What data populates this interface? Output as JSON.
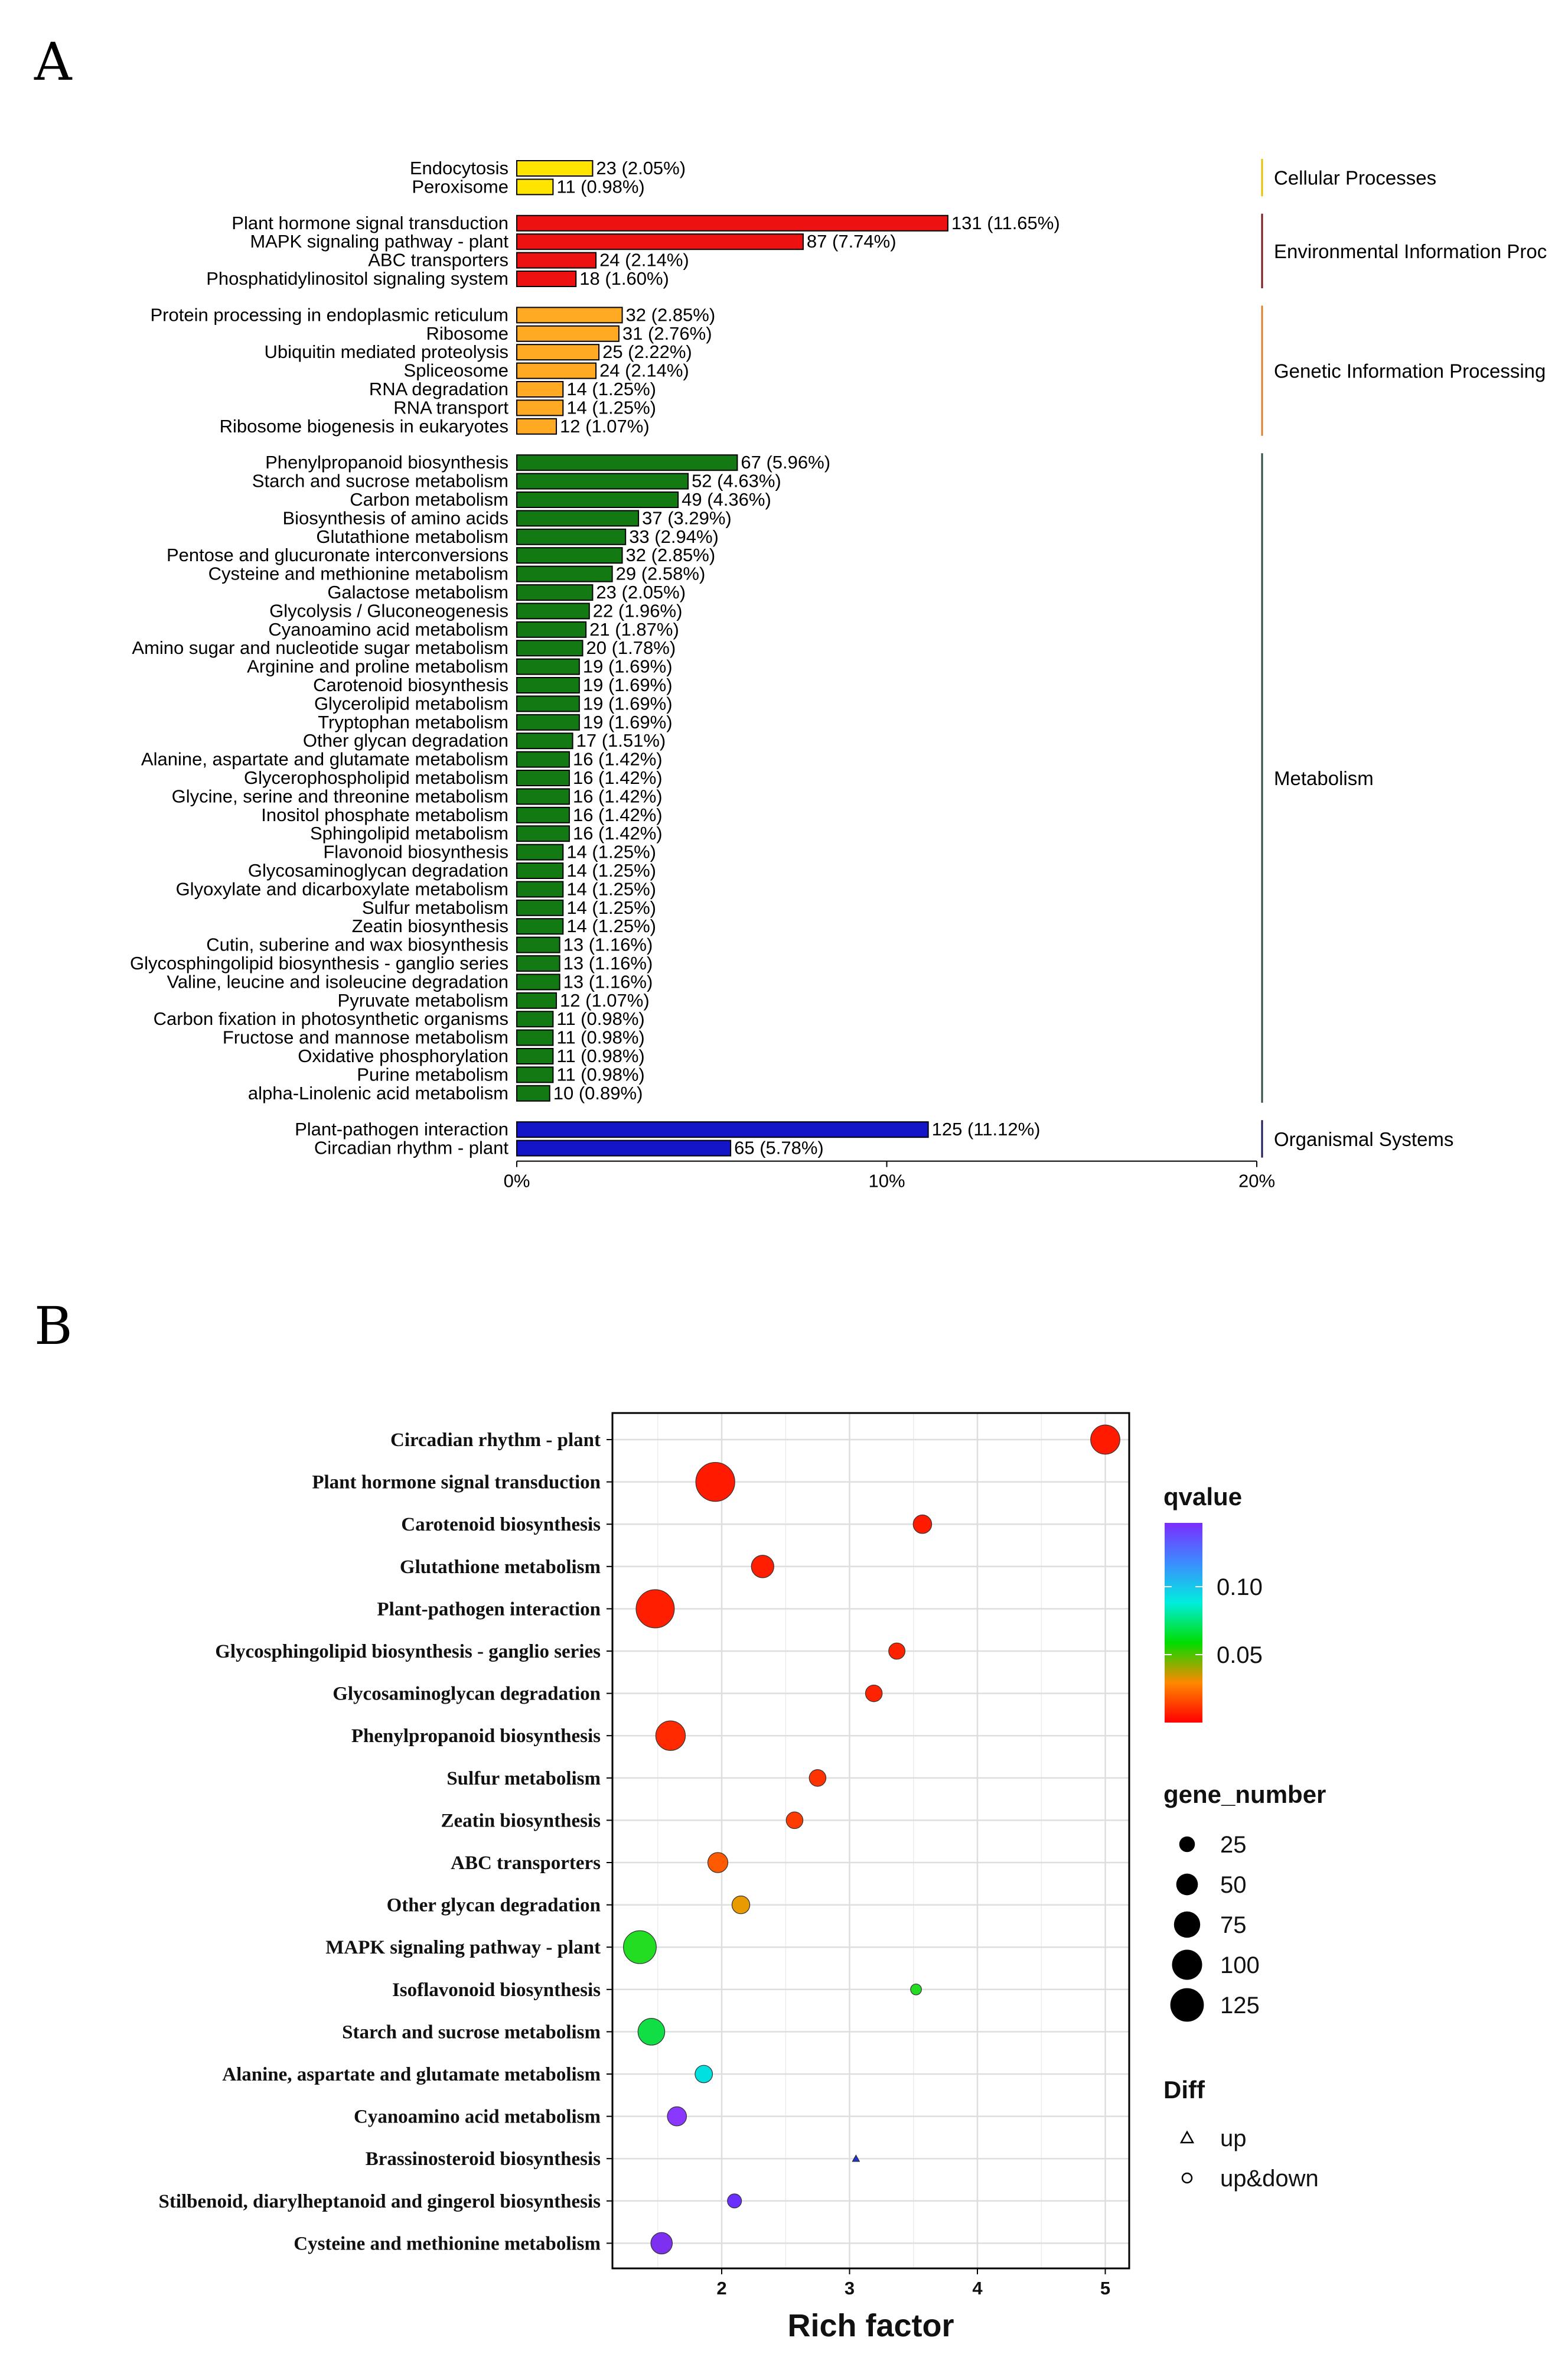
{
  "panel_labels": {
    "a": "A",
    "b": "B"
  },
  "chart_data": [
    {
      "type": "bar",
      "orientation": "horizontal",
      "panel": "A",
      "xlim": [
        0,
        20
      ],
      "x_ticks": [
        "0%",
        "10%",
        "20%"
      ],
      "grid": false,
      "groups": [
        {
          "name": "Cellular Processes",
          "color": "#ffe400",
          "bracket_color": "#e6c200",
          "items": [
            {
              "label": "Endocytosis",
              "count": 23,
              "percent": 2.05,
              "text": "23 (2.05%)"
            },
            {
              "label": "Peroxisome",
              "count": 11,
              "percent": 0.98,
              "text": "11 (0.98%)"
            }
          ]
        },
        {
          "name": "Environmental Information Proc",
          "color": "#ee1111",
          "bracket_color": "#7a1a1a",
          "items": [
            {
              "label": "Plant hormone signal transduction",
              "count": 131,
              "percent": 11.65,
              "text": "131 (11.65%)"
            },
            {
              "label": "MAPK signaling pathway - plant",
              "count": 87,
              "percent": 7.74,
              "text": "87 (7.74%)"
            },
            {
              "label": "ABC transporters",
              "count": 24,
              "percent": 2.14,
              "text": "24 (2.14%)"
            },
            {
              "label": "Phosphatidylinositol signaling system",
              "count": 18,
              "percent": 1.6,
              "text": "18 (1.60%)"
            }
          ]
        },
        {
          "name": "Genetic Information Processing",
          "color": "#ffaa22",
          "bracket_color": "#d9822b",
          "items": [
            {
              "label": "Protein processing in endoplasmic reticulum",
              "count": 32,
              "percent": 2.85,
              "text": "32 (2.85%)"
            },
            {
              "label": "Ribosome",
              "count": 31,
              "percent": 2.76,
              "text": "31 (2.76%)"
            },
            {
              "label": "Ubiquitin mediated proteolysis",
              "count": 25,
              "percent": 2.22,
              "text": "25 (2.22%)"
            },
            {
              "label": "Spliceosome",
              "count": 24,
              "percent": 2.14,
              "text": "24 (2.14%)"
            },
            {
              "label": "RNA degradation",
              "count": 14,
              "percent": 1.25,
              "text": "14 (1.25%)"
            },
            {
              "label": "RNA transport",
              "count": 14,
              "percent": 1.25,
              "text": "14 (1.25%)"
            },
            {
              "label": "Ribosome biogenesis in eukaryotes",
              "count": 12,
              "percent": 1.07,
              "text": "12 (1.07%)"
            }
          ]
        },
        {
          "name": "Metabolism",
          "color": "#137a13",
          "bracket_color": "#2f4f3f",
          "items": [
            {
              "label": "Phenylpropanoid biosynthesis",
              "count": 67,
              "percent": 5.96,
              "text": "67 (5.96%)"
            },
            {
              "label": "Starch and sucrose metabolism",
              "count": 52,
              "percent": 4.63,
              "text": "52 (4.63%)"
            },
            {
              "label": "Carbon metabolism",
              "count": 49,
              "percent": 4.36,
              "text": "49 (4.36%)"
            },
            {
              "label": "Biosynthesis of amino acids",
              "count": 37,
              "percent": 3.29,
              "text": "37 (3.29%)"
            },
            {
              "label": "Glutathione metabolism",
              "count": 33,
              "percent": 2.94,
              "text": "33 (2.94%)"
            },
            {
              "label": "Pentose and glucuronate interconversions",
              "count": 32,
              "percent": 2.85,
              "text": "32 (2.85%)"
            },
            {
              "label": "Cysteine and methionine metabolism",
              "count": 29,
              "percent": 2.58,
              "text": "29 (2.58%)"
            },
            {
              "label": "Galactose metabolism",
              "count": 23,
              "percent": 2.05,
              "text": "23 (2.05%)"
            },
            {
              "label": "Glycolysis / Gluconeogenesis",
              "count": 22,
              "percent": 1.96,
              "text": "22 (1.96%)"
            },
            {
              "label": "Cyanoamino acid metabolism",
              "count": 21,
              "percent": 1.87,
              "text": "21 (1.87%)"
            },
            {
              "label": "Amino sugar and nucleotide sugar metabolism",
              "count": 20,
              "percent": 1.78,
              "text": "20 (1.78%)"
            },
            {
              "label": "Arginine and proline metabolism",
              "count": 19,
              "percent": 1.69,
              "text": "19 (1.69%)"
            },
            {
              "label": "Carotenoid biosynthesis",
              "count": 19,
              "percent": 1.69,
              "text": "19 (1.69%)"
            },
            {
              "label": "Glycerolipid metabolism",
              "count": 19,
              "percent": 1.69,
              "text": "19 (1.69%)"
            },
            {
              "label": "Tryptophan metabolism",
              "count": 19,
              "percent": 1.69,
              "text": "19 (1.69%)"
            },
            {
              "label": "Other glycan degradation",
              "count": 17,
              "percent": 1.51,
              "text": "17 (1.51%)"
            },
            {
              "label": "Alanine, aspartate and glutamate metabolism",
              "count": 16,
              "percent": 1.42,
              "text": "16 (1.42%)"
            },
            {
              "label": "Glycerophospholipid metabolism",
              "count": 16,
              "percent": 1.42,
              "text": "16 (1.42%)"
            },
            {
              "label": "Glycine, serine and threonine metabolism",
              "count": 16,
              "percent": 1.42,
              "text": "16 (1.42%)"
            },
            {
              "label": "Inositol phosphate metabolism",
              "count": 16,
              "percent": 1.42,
              "text": "16 (1.42%)"
            },
            {
              "label": "Sphingolipid metabolism",
              "count": 16,
              "percent": 1.42,
              "text": "16 (1.42%)"
            },
            {
              "label": "Flavonoid biosynthesis",
              "count": 14,
              "percent": 1.25,
              "text": "14 (1.25%)"
            },
            {
              "label": "Glycosaminoglycan degradation",
              "count": 14,
              "percent": 1.25,
              "text": "14 (1.25%)"
            },
            {
              "label": "Glyoxylate and dicarboxylate metabolism",
              "count": 14,
              "percent": 1.25,
              "text": "14 (1.25%)"
            },
            {
              "label": "Sulfur metabolism",
              "count": 14,
              "percent": 1.25,
              "text": "14 (1.25%)"
            },
            {
              "label": "Zeatin biosynthesis",
              "count": 14,
              "percent": 1.25,
              "text": "14 (1.25%)"
            },
            {
              "label": "Cutin, suberine and wax biosynthesis",
              "count": 13,
              "percent": 1.16,
              "text": "13 (1.16%)"
            },
            {
              "label": "Glycosphingolipid biosynthesis - ganglio series",
              "count": 13,
              "percent": 1.16,
              "text": "13 (1.16%)"
            },
            {
              "label": "Valine, leucine and isoleucine degradation",
              "count": 13,
              "percent": 1.16,
              "text": "13 (1.16%)"
            },
            {
              "label": "Pyruvate metabolism",
              "count": 12,
              "percent": 1.07,
              "text": "12 (1.07%)"
            },
            {
              "label": "Carbon fixation in photosynthetic organisms",
              "count": 11,
              "percent": 0.98,
              "text": "11 (0.98%)"
            },
            {
              "label": "Fructose and mannose metabolism",
              "count": 11,
              "percent": 0.98,
              "text": "11 (0.98%)"
            },
            {
              "label": "Oxidative phosphorylation",
              "count": 11,
              "percent": 0.98,
              "text": "11 (0.98%)"
            },
            {
              "label": "Purine metabolism",
              "count": 11,
              "percent": 0.98,
              "text": "11 (0.98%)"
            },
            {
              "label": "alpha-Linolenic acid metabolism",
              "count": 10,
              "percent": 0.89,
              "text": "10 (0.89%)"
            }
          ]
        },
        {
          "name": "Organismal Systems",
          "color": "#1414c8",
          "bracket_color": "#1a1a5a",
          "items": [
            {
              "label": "Plant-pathogen interaction",
              "count": 125,
              "percent": 11.12,
              "text": "125 (11.12%)"
            },
            {
              "label": "Circadian rhythm - plant",
              "count": 65,
              "percent": 5.78,
              "text": "65 (5.78%)"
            }
          ]
        }
      ]
    },
    {
      "type": "scatter",
      "panel": "B",
      "xlabel": "Rich factor",
      "x_ticks": [
        2,
        3,
        4,
        5
      ],
      "grid": true,
      "legend_position": "right",
      "color_legend": {
        "title": "qvalue",
        "ticks": [
          "0.10",
          "0.05"
        ],
        "colors": [
          "#ff0000",
          "#ff8800",
          "#00dd00",
          "#00eedd",
          "#3c8cff",
          "#7b2cff"
        ]
      },
      "size_legend": {
        "title": "gene_number",
        "values": [
          25,
          50,
          75,
          100,
          125
        ]
      },
      "shape_legend": {
        "title": "Diff",
        "items": [
          {
            "label": "up",
            "shape": "triangle"
          },
          {
            "label": "up&down",
            "shape": "circle"
          }
        ]
      },
      "points": [
        {
          "term": "Circadian rhythm - plant",
          "x": 5.0,
          "gene_number": 65,
          "qvalue": 0.0003,
          "color": "#ff1a00",
          "shape": "circle"
        },
        {
          "term": "Plant hormone signal transduction",
          "x": 1.95,
          "gene_number": 131,
          "qvalue": 0.0003,
          "color": "#ff1a00",
          "shape": "circle"
        },
        {
          "term": "Carotenoid biosynthesis",
          "x": 3.57,
          "gene_number": 19,
          "qvalue": 0.0005,
          "color": "#ff1a00",
          "shape": "circle"
        },
        {
          "term": "Glutathione metabolism",
          "x": 2.32,
          "gene_number": 33,
          "qvalue": 0.001,
          "color": "#ff1e00",
          "shape": "circle"
        },
        {
          "term": "Plant-pathogen interaction",
          "x": 1.48,
          "gene_number": 125,
          "qvalue": 0.001,
          "color": "#ff1e00",
          "shape": "circle"
        },
        {
          "term": "Glycosphingolipid biosynthesis - ganglio series",
          "x": 3.37,
          "gene_number": 13,
          "qvalue": 0.002,
          "color": "#ff2200",
          "shape": "circle"
        },
        {
          "term": "Glycosaminoglycan degradation",
          "x": 3.19,
          "gene_number": 14,
          "qvalue": 0.002,
          "color": "#ff2200",
          "shape": "circle"
        },
        {
          "term": "Phenylpropanoid biosynthesis",
          "x": 1.6,
          "gene_number": 67,
          "qvalue": 0.003,
          "color": "#ff2a00",
          "shape": "circle"
        },
        {
          "term": "Sulfur metabolism",
          "x": 2.75,
          "gene_number": 14,
          "qvalue": 0.006,
          "color": "#ff3300",
          "shape": "circle"
        },
        {
          "term": "Zeatin biosynthesis",
          "x": 2.57,
          "gene_number": 14,
          "qvalue": 0.008,
          "color": "#ff3c00",
          "shape": "circle"
        },
        {
          "term": "ABC transporters",
          "x": 1.97,
          "gene_number": 24,
          "qvalue": 0.012,
          "color": "#ff5a00",
          "shape": "circle"
        },
        {
          "term": "Other glycan degradation",
          "x": 2.15,
          "gene_number": 17,
          "qvalue": 0.025,
          "color": "#e89a00",
          "shape": "circle"
        },
        {
          "term": "MAPK signaling pathway - plant",
          "x": 1.36,
          "gene_number": 87,
          "qvalue": 0.05,
          "color": "#22dd22",
          "shape": "circle"
        },
        {
          "term": "Isoflavonoid biosynthesis",
          "x": 3.52,
          "gene_number": 3,
          "qvalue": 0.05,
          "color": "#22dd22",
          "shape": "circle"
        },
        {
          "term": "Starch and sucrose metabolism",
          "x": 1.45,
          "gene_number": 52,
          "qvalue": 0.055,
          "color": "#11dd44",
          "shape": "circle"
        },
        {
          "term": "Alanine, aspartate and glutamate metabolism",
          "x": 1.86,
          "gene_number": 16,
          "qvalue": 0.09,
          "color": "#00e0e0",
          "shape": "circle"
        },
        {
          "term": "Cyanoamino acid metabolism",
          "x": 1.65,
          "gene_number": 21,
          "qvalue": 0.13,
          "color": "#8a38ff",
          "shape": "circle"
        },
        {
          "term": "Brassinosteroid biosynthesis",
          "x": 3.05,
          "gene_number": 2,
          "qvalue": 0.13,
          "color": "#2233cc",
          "shape": "triangle"
        },
        {
          "term": "Stilbenoid, diarylheptanoid and gingerol biosynthesis",
          "x": 2.1,
          "gene_number": 8,
          "qvalue": 0.13,
          "color": "#6a30ff",
          "shape": "circle"
        },
        {
          "term": "Cysteine and methionine metabolism",
          "x": 1.53,
          "gene_number": 29,
          "qvalue": 0.14,
          "color": "#7e30f0",
          "shape": "circle"
        }
      ]
    }
  ]
}
